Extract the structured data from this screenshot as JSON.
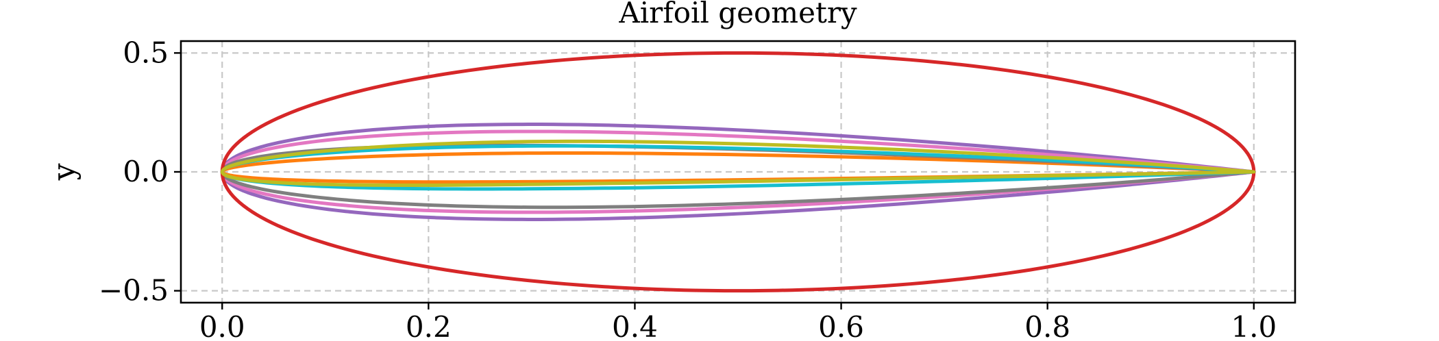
{
  "chart_data": {
    "type": "line",
    "title": "Airfoil geometry",
    "xlabel": "",
    "ylabel": "y",
    "xlim": [
      -0.04,
      1.04
    ],
    "ylim": [
      -0.55,
      0.55
    ],
    "x_ticks": [
      0.0,
      0.2,
      0.4,
      0.6,
      0.8,
      1.0
    ],
    "x_tick_labels": [
      "0.0",
      "0.2",
      "0.4",
      "0.6",
      "0.8",
      "1.0"
    ],
    "y_ticks": [
      -0.5,
      0.0,
      0.5
    ],
    "y_tick_labels": [
      "−0.5",
      "0.0",
      "0.5"
    ],
    "grid": true,
    "legend": "none",
    "series": [
      {
        "color": "#ff7f0e",
        "thickness": 0.12,
        "camber": 0.02,
        "camber_pos": 0.4,
        "x": [
          0,
          0.3,
          0.6,
          1.0
        ],
        "y_upper": [
          0,
          0.085,
          0.065,
          0
        ],
        "y_lower": [
          0,
          -0.05,
          -0.035,
          0
        ]
      },
      {
        "color": "#9467bd",
        "thickness": 0.4,
        "camber": 0.0,
        "camber_pos": 0.4,
        "x": [
          0,
          0.3,
          0.6,
          1.0
        ],
        "y_upper": [
          0,
          0.2,
          0.15,
          0
        ],
        "y_lower": [
          0,
          -0.2,
          -0.15,
          0
        ]
      },
      {
        "color": "#e377c2",
        "thickness": 0.34,
        "camber": 0.0,
        "camber_pos": 0.4,
        "x": [
          0,
          0.3,
          0.6,
          1.0
        ],
        "y_upper": [
          0,
          0.17,
          0.13,
          0
        ],
        "y_lower": [
          0,
          -0.17,
          -0.13,
          0
        ]
      },
      {
        "color": "#7f7f7f",
        "thickness": 0.26,
        "camber": -0.02,
        "camber_pos": 0.4,
        "x": [
          0,
          0.3,
          0.6,
          1.0
        ],
        "y_upper": [
          0,
          0.13,
          0.1,
          0
        ],
        "y_lower": [
          0,
          -0.16,
          -0.12,
          0
        ]
      },
      {
        "color": "#17becf",
        "thickness": 0.18,
        "camber": 0.02,
        "camber_pos": 0.4,
        "x": [
          0,
          0.3,
          0.6,
          1.0
        ],
        "y_upper": [
          0,
          0.11,
          0.08,
          0
        ],
        "y_lower": [
          0,
          -0.1,
          -0.07,
          0
        ]
      },
      {
        "color": "#d62728",
        "thickness": 1.0,
        "camber": 0.0,
        "camber_pos": 0.5,
        "shape": "ellipse",
        "x": [
          0,
          0.5,
          1.0
        ],
        "y_upper": [
          0,
          0.5,
          0
        ],
        "y_lower": [
          0,
          -0.5,
          0
        ]
      },
      {
        "color": "#bcbd22",
        "thickness": 0.18,
        "camber": 0.04,
        "camber_pos": 0.4,
        "x": [
          0,
          0.3,
          0.6,
          1.0
        ],
        "y_upper": [
          0,
          0.12,
          0.1,
          0
        ],
        "y_lower": [
          0,
          -0.06,
          -0.04,
          0
        ]
      }
    ]
  }
}
